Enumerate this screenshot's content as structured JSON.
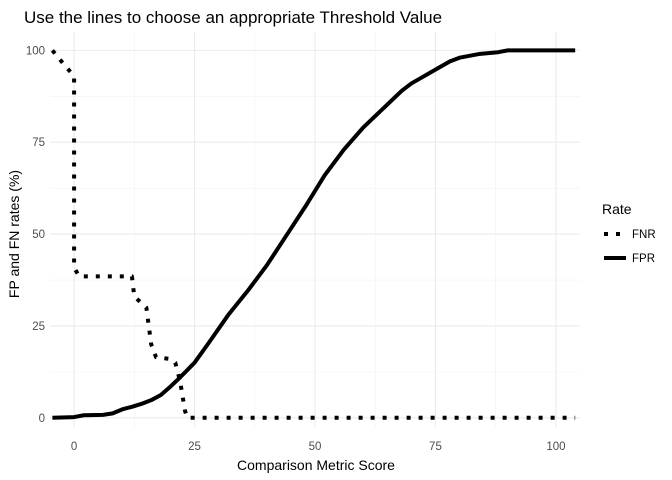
{
  "chart_data": {
    "type": "line",
    "title": "Use the lines to choose an appropriate Threshold Value",
    "xlabel": "Comparison Metric Score",
    "ylabel": "FP and FN rates (%)",
    "xlim": [
      -5,
      105
    ],
    "ylim": [
      -2.5,
      105
    ],
    "x_ticks": [
      0,
      25,
      50,
      75,
      100
    ],
    "y_ticks": [
      0,
      25,
      50,
      75,
      100
    ],
    "grid": true,
    "legend": {
      "title": "Rate",
      "position": "right"
    },
    "series": [
      {
        "name": "FNR",
        "line_style": "dotted",
        "color": "#000000",
        "points": [
          [
            -4.5,
            100
          ],
          [
            -2,
            96
          ],
          [
            0,
            93
          ],
          [
            0,
            41
          ],
          [
            1,
            38.5
          ],
          [
            12,
            38.5
          ],
          [
            12.5,
            33
          ],
          [
            15,
            30
          ],
          [
            16,
            20
          ],
          [
            17,
            16.5
          ],
          [
            20,
            16
          ],
          [
            21,
            15
          ],
          [
            22,
            10
          ],
          [
            23,
            2
          ],
          [
            23.5,
            0
          ],
          [
            104,
            0
          ]
        ]
      },
      {
        "name": "FPR",
        "line_style": "solid",
        "color": "#000000",
        "points": [
          [
            -4.5,
            0
          ],
          [
            0,
            0.2
          ],
          [
            2,
            0.7
          ],
          [
            6,
            0.8
          ],
          [
            8,
            1.2
          ],
          [
            10,
            2.3
          ],
          [
            12,
            3
          ],
          [
            14,
            3.8
          ],
          [
            16,
            4.8
          ],
          [
            18,
            6.2
          ],
          [
            20,
            8.5
          ],
          [
            22,
            11
          ],
          [
            25,
            15
          ],
          [
            28,
            20.5
          ],
          [
            32,
            28
          ],
          [
            36,
            34.5
          ],
          [
            40,
            41.5
          ],
          [
            44,
            49.5
          ],
          [
            48,
            57.5
          ],
          [
            52,
            66
          ],
          [
            56,
            73
          ],
          [
            60,
            79
          ],
          [
            64,
            84
          ],
          [
            68,
            89
          ],
          [
            70,
            91
          ],
          [
            72,
            92.5
          ],
          [
            74,
            94
          ],
          [
            76,
            95.5
          ],
          [
            78,
            97
          ],
          [
            80,
            98
          ],
          [
            84,
            99
          ],
          [
            88,
            99.5
          ],
          [
            90,
            100
          ],
          [
            104,
            100
          ]
        ]
      }
    ]
  }
}
